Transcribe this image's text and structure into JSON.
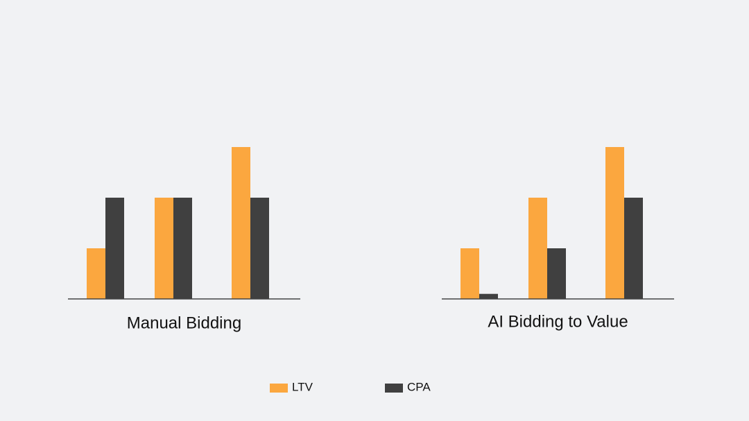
{
  "chart_data": [
    {
      "type": "bar",
      "title": "Manual Bidding",
      "categories": [
        null,
        null,
        null
      ],
      "series": [
        {
          "name": "LTV",
          "color": "#fba73f",
          "values": [
            1,
            2,
            3
          ]
        },
        {
          "name": "CPA",
          "color": "#404040",
          "values": [
            2,
            2,
            2
          ]
        }
      ],
      "ylim": [
        0,
        3
      ]
    },
    {
      "type": "bar",
      "title": "AI Bidding to Value",
      "categories": [
        null,
        null,
        null
      ],
      "series": [
        {
          "color": "#fba73f",
          "values": [
            1,
            2,
            3
          ]
        },
        {
          "color": "#404040",
          "values": [
            0.1,
            1,
            2
          ]
        }
      ],
      "ylim": [
        0,
        3
      ]
    }
  ]
}
